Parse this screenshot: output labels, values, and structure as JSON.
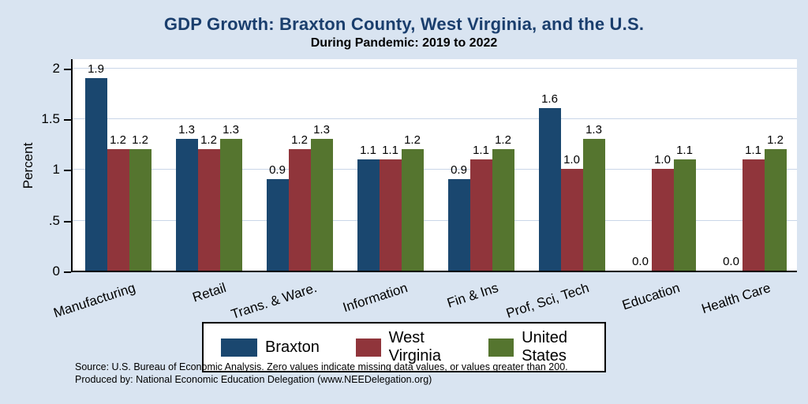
{
  "title": "GDP Growth: Braxton County, West Virginia, and the U.S.",
  "subtitle": "During Pandemic: 2019 to 2022",
  "chart_data": {
    "type": "bar",
    "title": "GDP Growth: Braxton County, West Virginia, and the U.S.",
    "subtitle": "During Pandemic: 2019 to 2022",
    "categories": [
      "Manufacturing",
      "Retail",
      "Trans. & Ware.",
      "Information",
      "Fin & Ins",
      "Prof, Sci, Tech",
      "Education",
      "Health Care"
    ],
    "series": [
      {
        "name": "Braxton",
        "color": "#1a476f",
        "values": [
          1.9,
          1.3,
          0.9,
          1.1,
          0.9,
          1.6,
          0.0,
          0.0
        ]
      },
      {
        "name": "West Virginia",
        "color": "#90353b",
        "values": [
          1.2,
          1.2,
          1.2,
          1.1,
          1.1,
          1.0,
          1.0,
          1.1
        ]
      },
      {
        "name": "United States",
        "color": "#55752f",
        "values": [
          1.2,
          1.3,
          1.3,
          1.2,
          1.2,
          1.3,
          1.1,
          1.2
        ]
      }
    ],
    "xlabel": "",
    "ylabel": "Percent",
    "ylim": [
      0,
      2.1
    ],
    "yticks": [
      {
        "v": 0,
        "label": "0"
      },
      {
        "v": 0.5,
        "label": ".5"
      },
      {
        "v": 1,
        "label": "1"
      },
      {
        "v": 1.5,
        "label": "1.5"
      },
      {
        "v": 2,
        "label": "2"
      }
    ],
    "grid": true,
    "legend_position": "bottom",
    "value_labels_decimals": 1
  },
  "colors": {
    "background": "#d9e4f1",
    "plot_background": "#ffffff",
    "title": "#1a3e6d",
    "gridline": "#c9d6e8",
    "braxton": "#1a476f",
    "west_virginia": "#90353b",
    "united_states": "#55752f"
  },
  "footer": {
    "line1": "Source: U.S. Bureau of Economic Analysis. Zero values indicate missing data values, or values greater than 200.",
    "line2": "Produced by: National Economic Education Delegation (www.NEEDelegation.org)"
  }
}
